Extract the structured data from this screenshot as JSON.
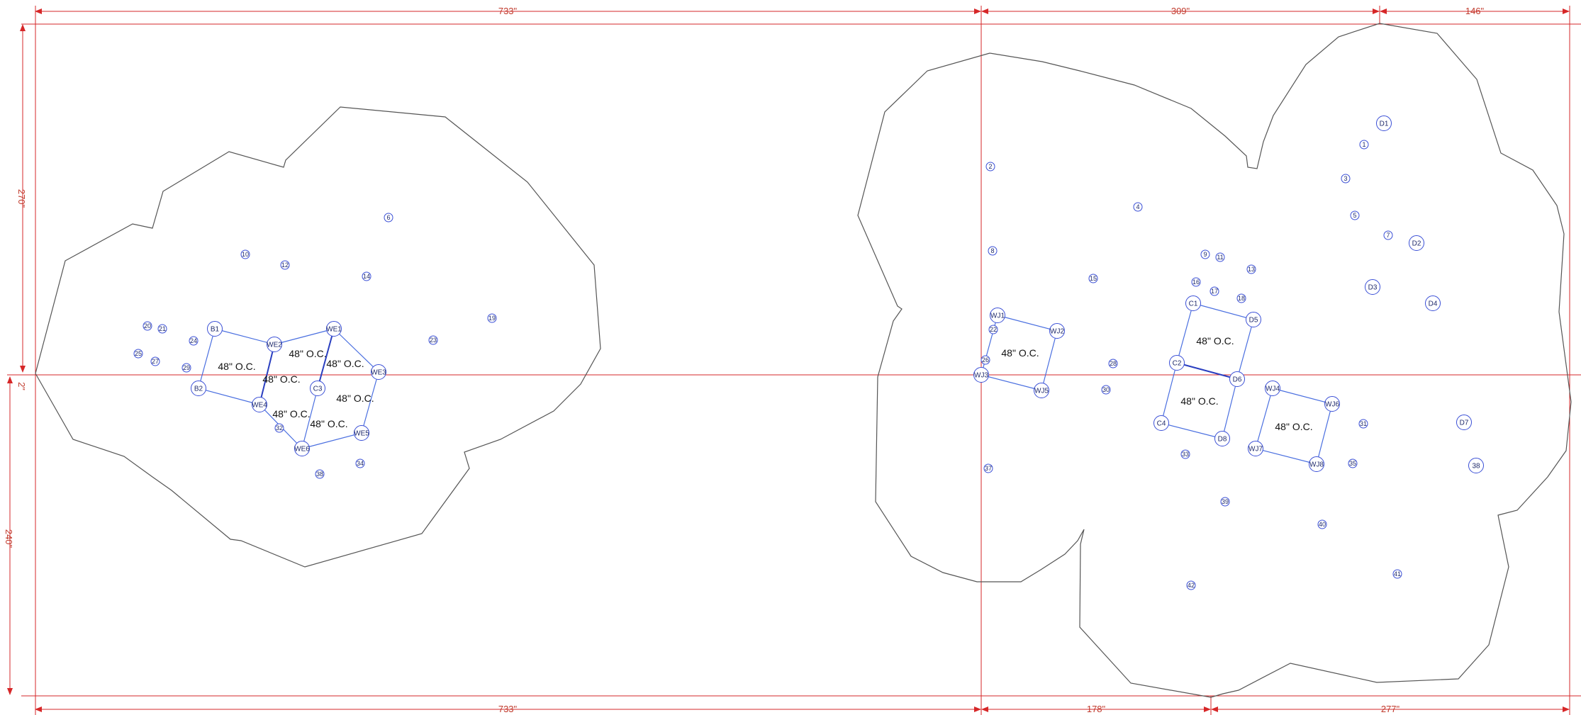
{
  "colors": {
    "dimension": "#d62728",
    "outline": "#555555",
    "connection": "#4a6fe0",
    "marker": "#3a4fd6",
    "marker_text": "#1f2a6b"
  },
  "dimensions": {
    "top": [
      "733\"",
      "309\"",
      "146\""
    ],
    "bottom": [
      "733\"",
      "178\"",
      "277\""
    ],
    "left": [
      "270\"",
      "2\"",
      "240\""
    ]
  },
  "spacing_label": "48\" O.C.",
  "left_region": {
    "markers": [
      "B1",
      "B2",
      "WE2",
      "WE1",
      "WE3",
      "WE4",
      "C3",
      "WE5",
      "WE6"
    ],
    "points": [
      "6",
      "10",
      "12",
      "14",
      "19",
      "20",
      "21",
      "24",
      "25",
      "27",
      "29",
      "23",
      "32",
      "34",
      "38"
    ]
  },
  "right_region": {
    "markers": [
      "D1",
      "D2",
      "D3",
      "D4",
      "D7",
      "38",
      "WJ1",
      "WJ2",
      "WJ3",
      "WJ5",
      "C1",
      "D5",
      "C2",
      "D6",
      "C4",
      "D8",
      "WJ4",
      "WJ6",
      "WJ7",
      "WJ8"
    ],
    "points": [
      "1",
      "2",
      "3",
      "4",
      "5",
      "7",
      "8",
      "9",
      "11",
      "13",
      "15",
      "16",
      "17",
      "18",
      "22",
      "26",
      "28",
      "30",
      "31",
      "33",
      "35",
      "37",
      "39",
      "40",
      "41",
      "42"
    ]
  }
}
